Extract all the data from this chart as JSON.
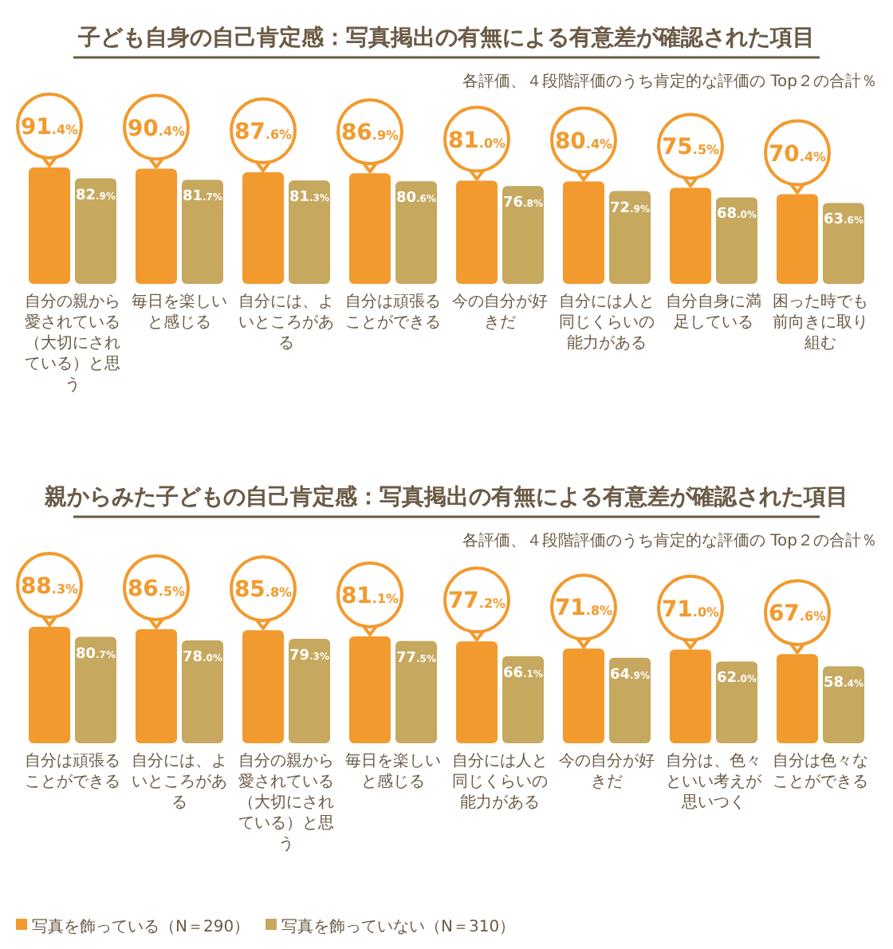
{
  "chart_data": [
    {
      "type": "bar",
      "title": "子ども自身の自己肯定感：写真掲出の有無による有意差が確認された項目",
      "subtitle": "各評価、４段階評価のうち肯定的な評価の Top２の合計％",
      "categories": [
        "自分の親から愛されている（大切にされている）と思う",
        "毎日を楽しいと感じる",
        "自分には、よいところがある",
        "自分は頑張ることができる",
        "今の自分が好きだ",
        "自分には人と同じくらいの能力がある",
        "自分自身に満足している",
        "困った時でも前向きに取り組む"
      ],
      "data_labels": true,
      "legend": false,
      "series": [
        {
          "color": "#f29a2e",
          "values": [
            91.4,
            90.4,
            87.6,
            86.9,
            81.0,
            80.4,
            75.5,
            70.4
          ],
          "value_labels": [
            "91.4%",
            "90.4%",
            "87.6%",
            "86.9%",
            "81.0%",
            "80.4%",
            "75.5%",
            "70.4%"
          ]
        },
        {
          "color": "#c6a85e",
          "values": [
            82.9,
            81.7,
            81.3,
            80.6,
            76.8,
            72.9,
            68.0,
            63.6
          ],
          "value_labels": [
            "82.9%",
            "81.7%",
            "81.3%",
            "80.6%",
            "76.8%",
            "72.9%",
            "68.0%",
            "63.6%"
          ]
        }
      ]
    },
    {
      "type": "bar",
      "title": "親からみた子どもの自己肯定感：写真掲出の有無による有意差が確認された項目",
      "subtitle": "各評価、４段階評価のうち肯定的な評価の Top２の合計％",
      "categories": [
        "自分は頑張ることができる",
        "自分には、よいところがある",
        "自分の親から愛されている（大切にされている）と思う",
        "毎日を楽しいと感じる",
        "自分には人と同じくらいの能力がある",
        "今の自分が好きだ",
        "自分は、色々といい考えが思いつく",
        "自分は色々なことができる"
      ],
      "data_labels": true,
      "legend": "bottom left",
      "series": [
        {
          "name": "写真を飾っている（N＝290）",
          "color": "#f29a2e",
          "values": [
            88.3,
            86.5,
            85.8,
            81.1,
            77.2,
            71.8,
            71.0,
            67.6
          ],
          "value_labels": [
            "88.3%",
            "86.5%",
            "85.8%",
            "81.1%",
            "77.2%",
            "71.8%",
            "71.0%",
            "67.6%"
          ]
        },
        {
          "name": "写真を飾っていない（N＝310）",
          "color": "#c6a85e",
          "values": [
            80.7,
            78.0,
            79.3,
            77.5,
            66.1,
            64.9,
            62.0,
            58.4
          ],
          "value_labels": [
            "80.7%",
            "78.0%",
            "79.3%",
            "77.5%",
            "66.1%",
            "64.9%",
            "62.0%",
            "58.4%"
          ]
        }
      ]
    }
  ]
}
